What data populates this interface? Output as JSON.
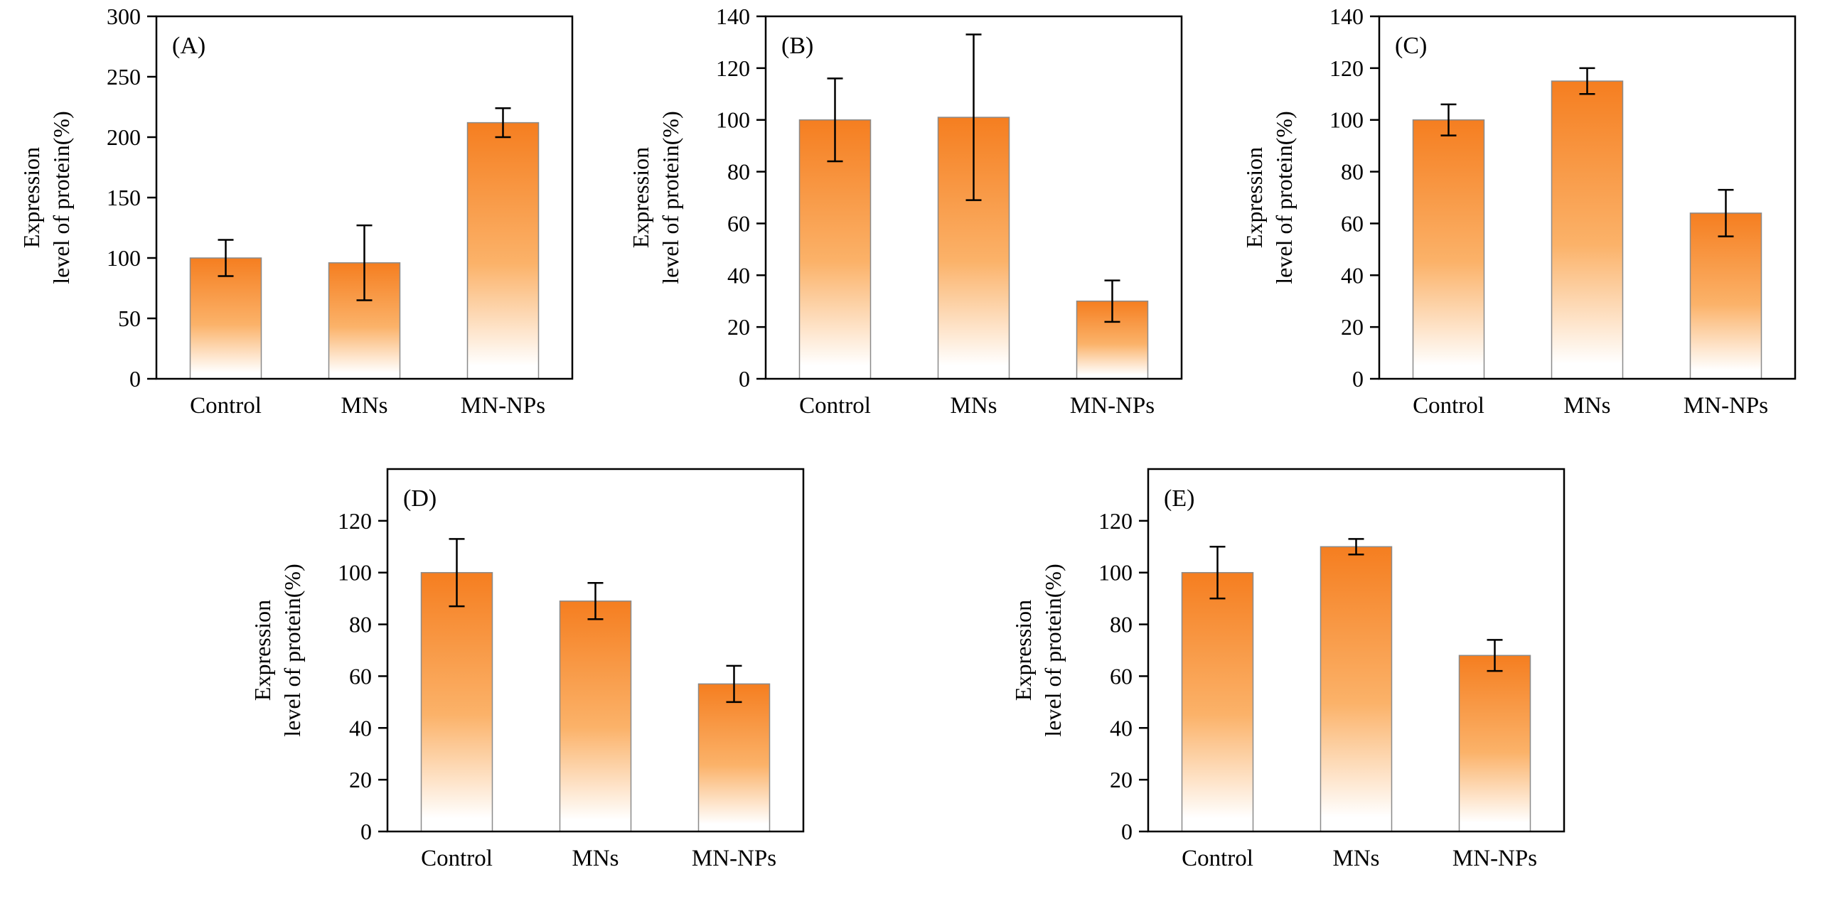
{
  "figure": {
    "background": "#ffffff",
    "description_labels": [
      "(A)",
      "(B)",
      "(C)",
      "(D)",
      "(E)"
    ]
  },
  "colors": {
    "bar_top": "#F57E20",
    "bar_mid": "#FBB269",
    "bar_bottom": "#FFFFFF",
    "bar_outline": "#8a8a8a",
    "axis": "#000000",
    "error_bar": "#000000"
  },
  "chart_data": [
    {
      "panel": "(A)",
      "type": "bar",
      "categories": [
        "Control",
        "MNs",
        "MN-NPs"
      ],
      "values": [
        100,
        96,
        212
      ],
      "errors": [
        15,
        31,
        12
      ],
      "ylabel_line1": "Expression",
      "ylabel_line2": "level of protein(%)",
      "ylim": [
        0,
        300
      ],
      "ytick_step": 50,
      "ytick_max": 300,
      "grid": false,
      "legend": "none"
    },
    {
      "panel": "(B)",
      "type": "bar",
      "categories": [
        "Control",
        "MNs",
        "MN-NPs"
      ],
      "values": [
        100,
        101,
        30
      ],
      "errors": [
        16,
        32,
        8
      ],
      "ylabel_line1": "Expression",
      "ylabel_line2": "level of protein(%)",
      "ylim": [
        0,
        140
      ],
      "ytick_step": 20,
      "ytick_max": 140,
      "grid": false,
      "legend": "none"
    },
    {
      "panel": "(C)",
      "type": "bar",
      "categories": [
        "Control",
        "MNs",
        "MN-NPs"
      ],
      "values": [
        100,
        115,
        64
      ],
      "errors": [
        6,
        5,
        9
      ],
      "ylabel_line1": "Expression",
      "ylabel_line2": "level of protein(%)",
      "ylim": [
        0,
        140
      ],
      "ytick_step": 20,
      "ytick_max": 140,
      "grid": false,
      "legend": "none"
    },
    {
      "panel": "(D)",
      "type": "bar",
      "categories": [
        "Control",
        "MNs",
        "MN-NPs"
      ],
      "values": [
        100,
        89,
        57
      ],
      "errors": [
        13,
        7,
        7
      ],
      "ylabel_line1": "Expression",
      "ylabel_line2": "level of protein(%)",
      "ylim": [
        0,
        140
      ],
      "ytick_step": 20,
      "ytick_max": 120,
      "grid": false,
      "legend": "none"
    },
    {
      "panel": "(E)",
      "type": "bar",
      "categories": [
        "Control",
        "MNs",
        "MN-NPs"
      ],
      "values": [
        100,
        110,
        68
      ],
      "errors": [
        10,
        3,
        6
      ],
      "ylabel_line1": "Expression",
      "ylabel_line2": "level of protein(%)",
      "ylim": [
        0,
        140
      ],
      "ytick_step": 20,
      "ytick_max": 120,
      "grid": false,
      "legend": "none"
    }
  ]
}
